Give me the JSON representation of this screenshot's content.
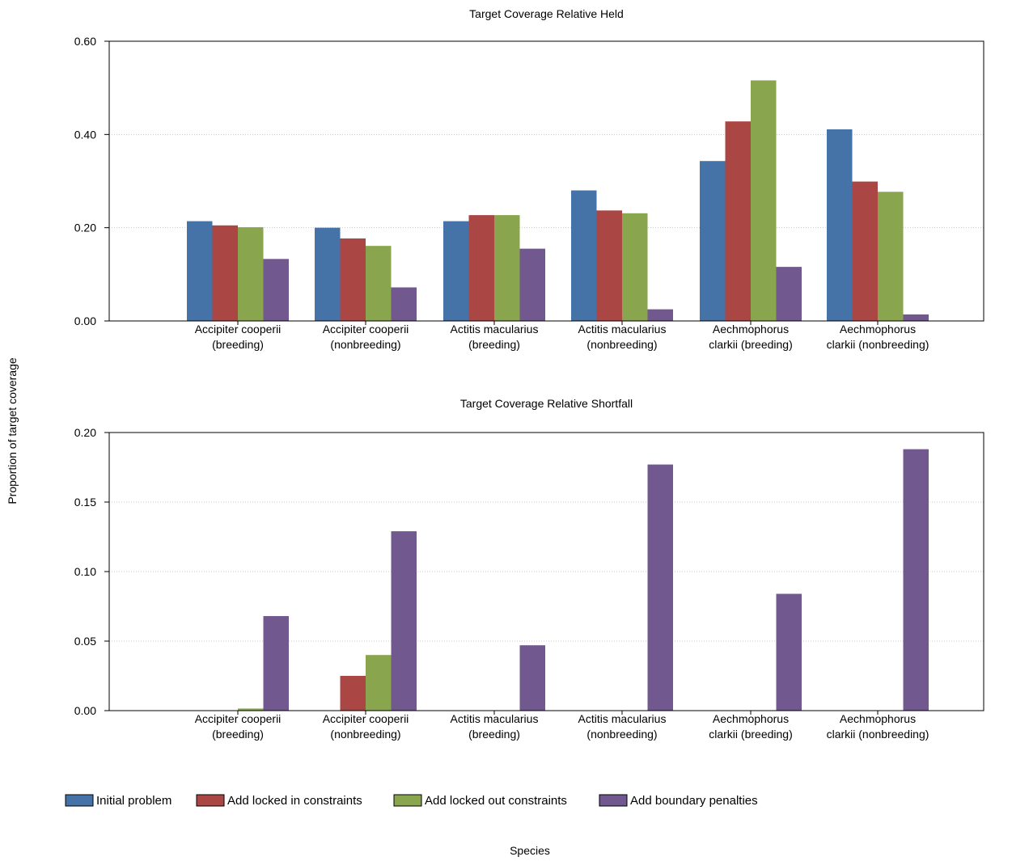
{
  "colors": {
    "Initial problem": "#4572A7",
    "Add locked in constraints": "#AA4643",
    "Add locked out constraints": "#89A54E",
    "Add boundary penalties": "#71588F"
  },
  "ylabel": "Proportion of target coverage",
  "xlabel": "Species",
  "chart_data": [
    {
      "type": "bar",
      "title": "Target Coverage Relative Held",
      "categories": [
        [
          "Accipiter cooperii",
          "(breeding)"
        ],
        [
          "Accipiter cooperii",
          "(nonbreeding)"
        ],
        [
          "Actitis macularius",
          "(breeding)"
        ],
        [
          "Actitis macularius",
          "(nonbreeding)"
        ],
        [
          "Aechmophorus",
          "clarkii (breeding)"
        ],
        [
          "Aechmophorus",
          "clarkii (nonbreeding)"
        ]
      ],
      "series": [
        {
          "name": "Initial problem",
          "values": [
            0.214,
            0.2,
            0.214,
            0.28,
            0.343,
            0.411
          ]
        },
        {
          "name": "Add locked in constraints",
          "values": [
            0.205,
            0.177,
            0.227,
            0.237,
            0.428,
            0.299
          ]
        },
        {
          "name": "Add locked out constraints",
          "values": [
            0.201,
            0.161,
            0.227,
            0.231,
            0.516,
            0.277
          ]
        },
        {
          "name": "Add boundary penalties",
          "values": [
            0.133,
            0.072,
            0.155,
            0.025,
            0.116,
            0.014
          ]
        }
      ],
      "ylim": [
        0,
        0.6
      ],
      "yticks": [
        "0.00",
        "0.20",
        "0.40",
        "0.60"
      ],
      "grid": true
    },
    {
      "type": "bar",
      "title": "Target Coverage Relative Shortfall",
      "categories": [
        [
          "Accipiter cooperii",
          "(breeding)"
        ],
        [
          "Accipiter cooperii",
          "(nonbreeding)"
        ],
        [
          "Actitis macularius",
          "(breeding)"
        ],
        [
          "Actitis macularius",
          "(nonbreeding)"
        ],
        [
          "Aechmophorus",
          "clarkii (breeding)"
        ],
        [
          "Aechmophorus",
          "clarkii (nonbreeding)"
        ]
      ],
      "series": [
        {
          "name": "Initial problem",
          "values": [
            0,
            0,
            0,
            0,
            0,
            0
          ]
        },
        {
          "name": "Add locked in constraints",
          "values": [
            0,
            0.025,
            0,
            0,
            0,
            0
          ]
        },
        {
          "name": "Add locked out constraints",
          "values": [
            0.0015,
            0.04,
            0,
            0,
            0,
            0
          ]
        },
        {
          "name": "Add boundary penalties",
          "values": [
            0.068,
            0.129,
            0.047,
            0.177,
            0.084,
            0.188
          ]
        }
      ],
      "ylim": [
        0,
        0.2
      ],
      "yticks": [
        "0.00",
        "0.05",
        "0.10",
        "0.15",
        "0.20"
      ],
      "grid": true
    }
  ],
  "legend": {
    "placement": "bottom-left",
    "items": [
      "Initial problem",
      "Add locked in constraints",
      "Add locked out constraints",
      "Add boundary penalties"
    ]
  }
}
